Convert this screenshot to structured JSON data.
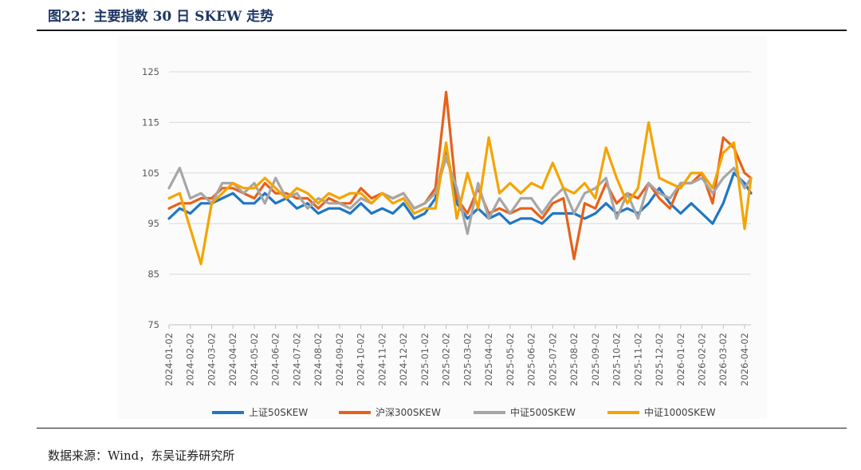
{
  "header": {
    "title": "图22：主要指数 30 日 SKEW 走势"
  },
  "footer": {
    "source": "数据来源：Wind，东吴证券研究所"
  },
  "chart_data": {
    "type": "line",
    "title": "主要指数 30 日 SKEW 走势",
    "xlabel": "",
    "ylabel": "",
    "ylim": [
      75,
      125
    ],
    "yticks": [
      "125",
      "115",
      "105",
      "95",
      "85",
      "75"
    ],
    "ytick_values": [
      125,
      115,
      105,
      95,
      85,
      75
    ],
    "xticks": [
      "2024-01-02",
      "2024-02-02",
      "2024-03-02",
      "2024-04-02",
      "2024-05-02",
      "2024-06-02",
      "2024-07-02",
      "2024-08-02",
      "2024-09-02",
      "2024-10-02",
      "2024-11-02",
      "2024-12-02",
      "2025-01-02",
      "2025-02-02",
      "2025-03-02",
      "2025-04-02",
      "2025-05-02",
      "2025-06-02",
      "2025-07-02",
      "2025-08-02",
      "2025-09-02",
      "2025-10-02",
      "2025-11-02",
      "2025-12-02",
      "2026-01-02",
      "2026-02-02",
      "2026-03-02",
      "2026-04-02"
    ],
    "x": [
      0,
      0.5,
      1,
      1.5,
      2,
      2.5,
      3,
      3.5,
      4,
      4.5,
      5,
      5.5,
      6,
      6.5,
      7,
      7.5,
      8,
      8.5,
      9,
      9.5,
      10,
      10.5,
      11,
      11.5,
      12,
      12.5,
      13,
      13.5,
      14,
      14.5,
      15,
      15.5,
      16,
      16.5,
      17,
      17.5,
      18,
      18.5,
      19,
      19.5,
      20,
      20.5,
      21,
      21.5,
      22,
      22.5,
      23,
      23.5,
      24,
      24.5,
      25,
      25.5,
      26,
      26.5,
      27,
      27.3
    ],
    "legend_position": "bottom",
    "series": [
      {
        "name": "上证50SKEW",
        "color": "#1f77c4",
        "values": [
          96,
          98,
          97,
          99,
          99,
          100,
          101,
          99,
          99,
          101,
          99,
          100,
          98,
          99,
          97,
          98,
          98,
          97,
          99,
          97,
          98,
          97,
          99,
          96,
          97,
          100,
          110,
          99,
          96,
          98,
          96,
          97,
          95,
          96,
          96,
          95,
          97,
          97,
          97,
          96,
          97,
          99,
          97,
          98,
          97,
          99,
          102,
          99,
          97,
          99,
          97,
          95,
          99,
          105,
          103,
          101
        ]
      },
      {
        "name": "沪深300SKEW",
        "color": "#e8611a",
        "values": [
          98,
          99,
          99,
          100,
          100,
          102,
          102,
          101,
          100,
          103,
          101,
          101,
          100,
          100,
          98,
          100,
          99,
          99,
          102,
          100,
          101,
          100,
          101,
          98,
          99,
          102,
          121,
          100,
          97,
          102,
          97,
          98,
          97,
          98,
          98,
          96,
          99,
          100,
          88,
          99,
          98,
          103,
          99,
          101,
          100,
          103,
          100,
          98,
          103,
          103,
          105,
          99,
          112,
          110,
          105,
          104
        ]
      },
      {
        "name": "中证500SKEW",
        "color": "#a6a6a6",
        "values": [
          102,
          106,
          100,
          101,
          99,
          103,
          103,
          101,
          103,
          99,
          104,
          100,
          101,
          98,
          100,
          99,
          99,
          98,
          100,
          99,
          101,
          100,
          101,
          98,
          99,
          101,
          108,
          102,
          93,
          103,
          96,
          100,
          97,
          100,
          100,
          97,
          100,
          102,
          97,
          101,
          102,
          104,
          96,
          101,
          96,
          103,
          101,
          100,
          103,
          103,
          104,
          101,
          104,
          106,
          102,
          104
        ]
      },
      {
        "name": "中证1000SKEW",
        "color": "#f5a400",
        "values": [
          100,
          101,
          94,
          87,
          99,
          101,
          103,
          102,
          102,
          104,
          102,
          100,
          102,
          101,
          99,
          101,
          100,
          101,
          101,
          99,
          101,
          99,
          100,
          97,
          98,
          98,
          111,
          96,
          105,
          98,
          112,
          101,
          103,
          101,
          103,
          102,
          107,
          102,
          101,
          103,
          100,
          110,
          104,
          99,
          102,
          115,
          104,
          103,
          102,
          105,
          105,
          102,
          109,
          111,
          94,
          104
        ]
      }
    ]
  }
}
